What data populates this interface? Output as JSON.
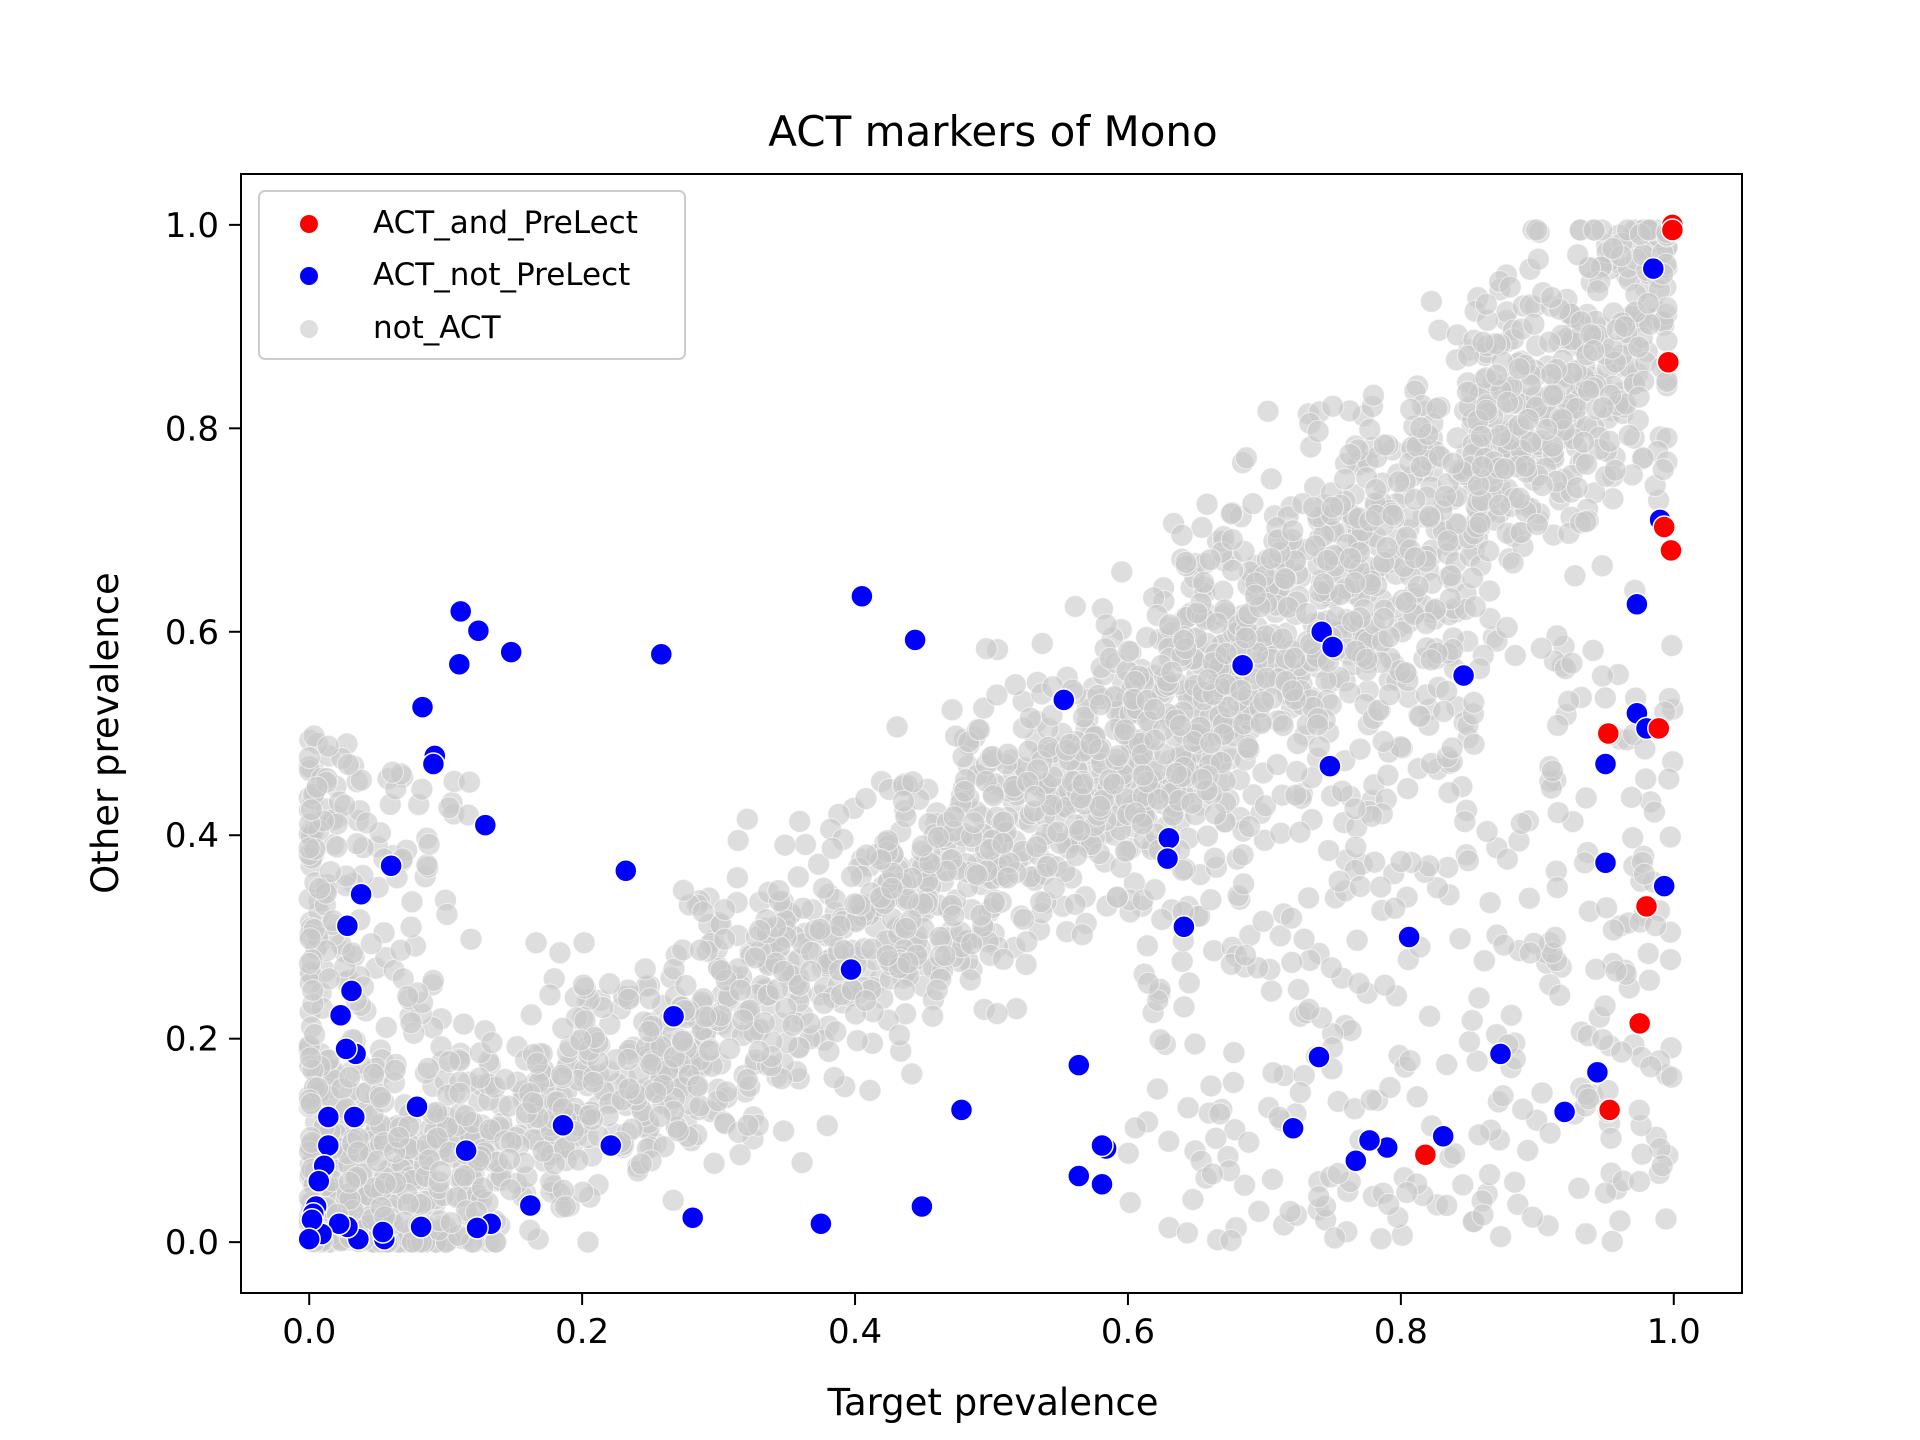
{
  "chart_data": {
    "type": "scatter",
    "title": "ACT markers of Mono",
    "xlabel": "Target prevalence",
    "ylabel": "Other prevalence",
    "xlim": [
      -0.05,
      1.05
    ],
    "ylim": [
      -0.05,
      1.05
    ],
    "xticks": [
      0.0,
      0.2,
      0.4,
      0.6,
      0.8,
      1.0
    ],
    "yticks": [
      0.0,
      0.2,
      0.4,
      0.6,
      0.8,
      1.0
    ],
    "xtick_labels": [
      "0.0",
      "0.2",
      "0.4",
      "0.6",
      "0.8",
      "1.0"
    ],
    "ytick_labels": [
      "0.0",
      "0.2",
      "0.4",
      "0.6",
      "0.8",
      "1.0"
    ],
    "grid": false,
    "legend_position": "top-left",
    "series": [
      {
        "name": "ACT_and_PreLect",
        "color": "#ff0000",
        "points": [
          [
            0.999,
            1.0
          ],
          [
            0.999,
            0.995
          ],
          [
            0.996,
            0.865
          ],
          [
            0.993,
            0.703
          ],
          [
            0.998,
            0.68
          ],
          [
            0.989,
            0.505
          ],
          [
            0.952,
            0.5
          ],
          [
            0.98,
            0.33
          ],
          [
            0.975,
            0.215
          ],
          [
            0.953,
            0.13
          ],
          [
            0.818,
            0.086
          ]
        ]
      },
      {
        "name": "ACT_not_PreLect",
        "color": "#0000ff",
        "points": [
          [
            0.985,
            0.957
          ],
          [
            0.99,
            0.71
          ],
          [
            0.973,
            0.627
          ],
          [
            0.973,
            0.52
          ],
          [
            0.98,
            0.505
          ],
          [
            0.95,
            0.47
          ],
          [
            0.993,
            0.35
          ],
          [
            0.95,
            0.373
          ],
          [
            0.944,
            0.167
          ],
          [
            0.92,
            0.128
          ],
          [
            0.873,
            0.185
          ],
          [
            0.846,
            0.557
          ],
          [
            0.806,
            0.3
          ],
          [
            0.831,
            0.104
          ],
          [
            0.79,
            0.093
          ],
          [
            0.777,
            0.1
          ],
          [
            0.767,
            0.08
          ],
          [
            0.74,
            0.182
          ],
          [
            0.721,
            0.112
          ],
          [
            0.742,
            0.6
          ],
          [
            0.75,
            0.585
          ],
          [
            0.748,
            0.468
          ],
          [
            0.684,
            0.567
          ],
          [
            0.641,
            0.31
          ],
          [
            0.63,
            0.397
          ],
          [
            0.629,
            0.377
          ],
          [
            0.584,
            0.092
          ],
          [
            0.581,
            0.095
          ],
          [
            0.581,
            0.057
          ],
          [
            0.564,
            0.174
          ],
          [
            0.564,
            0.065
          ],
          [
            0.553,
            0.533
          ],
          [
            0.478,
            0.13
          ],
          [
            0.449,
            0.035
          ],
          [
            0.444,
            0.592
          ],
          [
            0.405,
            0.635
          ],
          [
            0.397,
            0.268
          ],
          [
            0.375,
            0.018
          ],
          [
            0.281,
            0.024
          ],
          [
            0.267,
            0.222
          ],
          [
            0.258,
            0.578
          ],
          [
            0.232,
            0.365
          ],
          [
            0.221,
            0.095
          ],
          [
            0.186,
            0.115
          ],
          [
            0.162,
            0.036
          ],
          [
            0.148,
            0.58
          ],
          [
            0.133,
            0.018
          ],
          [
            0.129,
            0.41
          ],
          [
            0.124,
            0.601
          ],
          [
            0.123,
            0.014
          ],
          [
            0.111,
            0.62
          ],
          [
            0.11,
            0.568
          ],
          [
            0.115,
            0.09
          ],
          [
            0.092,
            0.478
          ],
          [
            0.091,
            0.47
          ],
          [
            0.083,
            0.526
          ],
          [
            0.082,
            0.015
          ],
          [
            0.079,
            0.133
          ],
          [
            0.06,
            0.37
          ],
          [
            0.055,
            0.003
          ],
          [
            0.054,
            0.01
          ],
          [
            0.038,
            0.342
          ],
          [
            0.036,
            0.003
          ],
          [
            0.034,
            0.185
          ],
          [
            0.033,
            0.123
          ],
          [
            0.031,
            0.247
          ],
          [
            0.028,
            0.311
          ],
          [
            0.028,
            0.015
          ],
          [
            0.027,
            0.19
          ],
          [
            0.023,
            0.223
          ],
          [
            0.022,
            0.018
          ],
          [
            0.014,
            0.123
          ],
          [
            0.014,
            0.095
          ],
          [
            0.011,
            0.075
          ],
          [
            0.009,
            0.008
          ],
          [
            0.007,
            0.06
          ],
          [
            0.005,
            0.035
          ],
          [
            0.003,
            0.028
          ],
          [
            0.002,
            0.022
          ],
          [
            0.0,
            0.003
          ]
        ]
      },
      {
        "name": "not_ACT",
        "color": "#c8c8c8",
        "count": 3200
      }
    ]
  }
}
